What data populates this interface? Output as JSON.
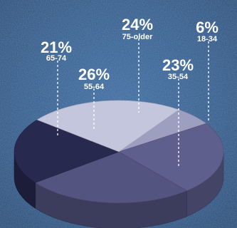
{
  "chart_data": {
    "type": "pie",
    "title": "",
    "series": [
      {
        "label": "6%",
        "category": "18-34",
        "value": 6
      },
      {
        "label": "23%",
        "category": "35-54",
        "value": 23
      },
      {
        "label": "26%",
        "category": "55-64",
        "value": 26
      },
      {
        "label": "21%",
        "category": "65-74",
        "value": 21
      },
      {
        "label": "24%",
        "category": "75-older",
        "value": 24
      }
    ],
    "colors": {
      "background": "#2f5b8c",
      "18-34": "#9d9fc0",
      "35-54": "#5f5f8d",
      "55-64": "#545480",
      "65-74": "#27294f",
      "75-older": "#c4c6dd"
    },
    "legend": "none",
    "grid": false
  }
}
